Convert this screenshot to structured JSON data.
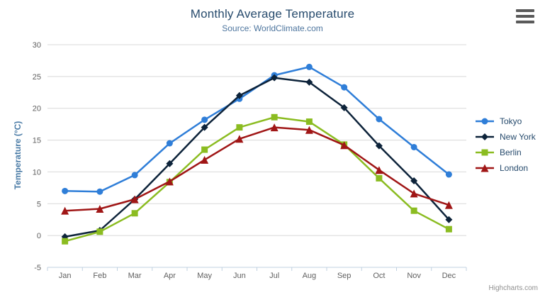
{
  "credits": "Highcharts.com",
  "menu": {
    "icon": "hamburger-icon"
  },
  "colors": {
    "title_text": "#274b6d",
    "subtitle_text": "#4d759e",
    "axis_title_text": "#4a7ba6",
    "tick_text": "#606060",
    "gridline": "#d8d8d8",
    "axis_line": "#c0d0e0",
    "background": "#ffffff"
  },
  "chart_data": {
    "type": "line",
    "title": "Monthly Average Temperature",
    "subtitle": "Source: WorldClimate.com",
    "xlabel": "",
    "ylabel": "Temperature (°C)",
    "categories": [
      "Jan",
      "Feb",
      "Mar",
      "Apr",
      "May",
      "Jun",
      "Jul",
      "Aug",
      "Sep",
      "Oct",
      "Nov",
      "Dec"
    ],
    "ylim": [
      -5,
      30
    ],
    "yticks": [
      -5,
      0,
      5,
      10,
      15,
      20,
      25,
      30
    ],
    "grid": true,
    "legend_position": "right",
    "series": [
      {
        "name": "Tokyo",
        "color": "#2f7ed8",
        "marker": "circle",
        "values": [
          7.0,
          6.9,
          9.5,
          14.5,
          18.2,
          21.5,
          25.2,
          26.5,
          23.3,
          18.3,
          13.9,
          9.6
        ]
      },
      {
        "name": "New York",
        "color": "#0d233a",
        "marker": "diamond",
        "values": [
          -0.2,
          0.8,
          5.7,
          11.3,
          17.0,
          22.0,
          24.8,
          24.1,
          20.1,
          14.1,
          8.6,
          2.5
        ]
      },
      {
        "name": "Berlin",
        "color": "#8bbc21",
        "marker": "square",
        "values": [
          -0.9,
          0.6,
          3.5,
          8.4,
          13.5,
          17.0,
          18.6,
          17.9,
          14.3,
          9.0,
          3.9,
          1.0
        ]
      },
      {
        "name": "London",
        "color": "#a01616",
        "marker": "triangle",
        "values": [
          3.9,
          4.2,
          5.7,
          8.5,
          11.9,
          15.2,
          17.0,
          16.6,
          14.2,
          10.3,
          6.6,
          4.8
        ]
      }
    ]
  }
}
